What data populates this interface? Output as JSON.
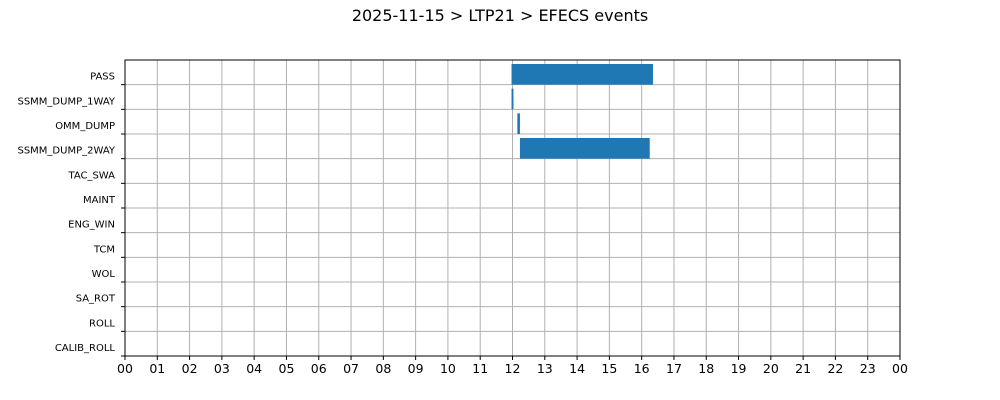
{
  "chart_data": {
    "type": "gantt",
    "title": "2025-11-15 > LTP21 > EFECS events",
    "xlabel": "",
    "ylabel": "",
    "xlim": [
      0,
      24
    ],
    "x_tick_labels": [
      "00",
      "01",
      "02",
      "03",
      "04",
      "05",
      "06",
      "07",
      "08",
      "09",
      "10",
      "11",
      "12",
      "13",
      "14",
      "15",
      "16",
      "17",
      "18",
      "19",
      "20",
      "21",
      "22",
      "23",
      "00"
    ],
    "categories": [
      "PASS",
      "SSMM_DUMP_1WAY",
      "OMM_DUMP",
      "SSMM_DUMP_2WAY",
      "TAC_SWA",
      "MAINT",
      "ENG_WIN",
      "TCM",
      "WOL",
      "SA_ROT",
      "ROLL",
      "CALIB_ROLL"
    ],
    "bars": [
      {
        "category": "PASS",
        "start": 11.97,
        "end": 16.35
      },
      {
        "category": "SSMM_DUMP_1WAY",
        "start": 11.97,
        "end": 12.03
      },
      {
        "category": "OMM_DUMP",
        "start": 12.15,
        "end": 12.23
      },
      {
        "category": "SSMM_DUMP_2WAY",
        "start": 12.23,
        "end": 16.25
      }
    ],
    "grid": true,
    "bar_color": "#1f77b4"
  }
}
